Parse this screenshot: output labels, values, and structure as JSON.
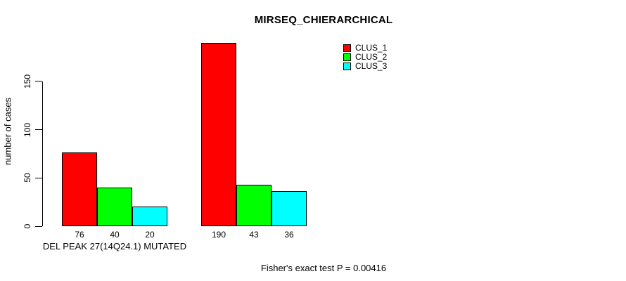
{
  "chart_data": {
    "type": "bar",
    "title": "MIRSEQ_CHIERARCHICAL",
    "ylabel": "number of cases",
    "xlabel": "DEL PEAK 27(14Q24.1) MUTATED",
    "ylim": [
      0,
      195
    ],
    "yticks": [
      0,
      50,
      100,
      150
    ],
    "grid": false,
    "legend_position": "top-right",
    "categories": [
      "DEL PEAK 27(14Q24.1) MUTATED",
      ""
    ],
    "series": [
      {
        "name": "CLUS_1",
        "color": "#ff0000",
        "values": [
          76,
          190
        ]
      },
      {
        "name": "CLUS_2",
        "color": "#00ff00",
        "values": [
          40,
          43
        ]
      },
      {
        "name": "CLUS_3",
        "color": "#00ffff",
        "values": [
          20,
          36
        ]
      }
    ],
    "bar_value_labels": [
      [
        76,
        40,
        20
      ],
      [
        190,
        43,
        36
      ]
    ],
    "annotation": "Fisher's exact test P = 0.00416"
  }
}
